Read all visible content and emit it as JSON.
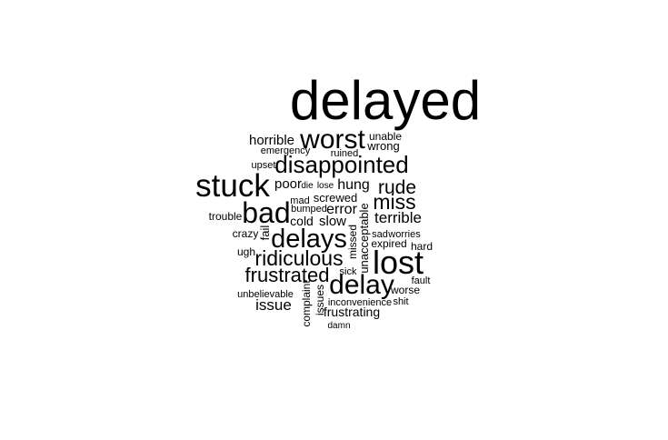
{
  "chart_data": {
    "type": "wordcloud",
    "text_color": "#000000",
    "background": "#ffffff",
    "words": [
      {
        "text": "delayed",
        "weight": 60
      },
      {
        "text": "lost",
        "weight": 36
      },
      {
        "text": "stuck",
        "weight": 35
      },
      {
        "text": "bad",
        "weight": 32
      },
      {
        "text": "delay",
        "weight": 30
      },
      {
        "text": "worst",
        "weight": 30
      },
      {
        "text": "delays",
        "weight": 29
      },
      {
        "text": "disappointed",
        "weight": 26
      },
      {
        "text": "ridiculous",
        "weight": 23
      },
      {
        "text": "miss",
        "weight": 23
      },
      {
        "text": "frustrated",
        "weight": 22
      },
      {
        "text": "rude",
        "weight": 21
      },
      {
        "text": "terrible",
        "weight": 17
      },
      {
        "text": "issue",
        "weight": 17
      },
      {
        "text": "hung",
        "weight": 16
      },
      {
        "text": "error",
        "weight": 16
      },
      {
        "text": "horrible",
        "weight": 15
      },
      {
        "text": "poor",
        "weight": 15
      },
      {
        "text": "slow",
        "weight": 15
      },
      {
        "text": "frustrating",
        "weight": 14
      },
      {
        "text": "cold",
        "weight": 14
      },
      {
        "text": "screwed",
        "weight": 13
      },
      {
        "text": "fail",
        "weight": 13
      },
      {
        "text": "wrong",
        "weight": 13
      },
      {
        "text": "unacceptable",
        "weight": 13
      },
      {
        "text": "missed",
        "weight": 12
      },
      {
        "text": "complaint",
        "weight": 12
      },
      {
        "text": "issues",
        "weight": 12
      },
      {
        "text": "unable",
        "weight": 12
      },
      {
        "text": "worse",
        "weight": 12
      },
      {
        "text": "crazy",
        "weight": 12
      },
      {
        "text": "trouble",
        "weight": 12
      },
      {
        "text": "hard",
        "weight": 12
      },
      {
        "text": "expired",
        "weight": 12
      },
      {
        "text": "ugh",
        "weight": 12
      },
      {
        "text": "inconvenience",
        "weight": 11
      },
      {
        "text": "unbelievable",
        "weight": 11
      },
      {
        "text": "worries",
        "weight": 11
      },
      {
        "text": "ruined",
        "weight": 11
      },
      {
        "text": "emergency",
        "weight": 11
      },
      {
        "text": "upset",
        "weight": 11
      },
      {
        "text": "mad",
        "weight": 11
      },
      {
        "text": "bumped",
        "weight": 11
      },
      {
        "text": "sad",
        "weight": 11
      },
      {
        "text": "fault",
        "weight": 11
      },
      {
        "text": "shit",
        "weight": 11
      },
      {
        "text": "sick",
        "weight": 11
      },
      {
        "text": "lose",
        "weight": 10
      },
      {
        "text": "die",
        "weight": 10
      },
      {
        "text": "damn",
        "weight": 10
      }
    ]
  }
}
